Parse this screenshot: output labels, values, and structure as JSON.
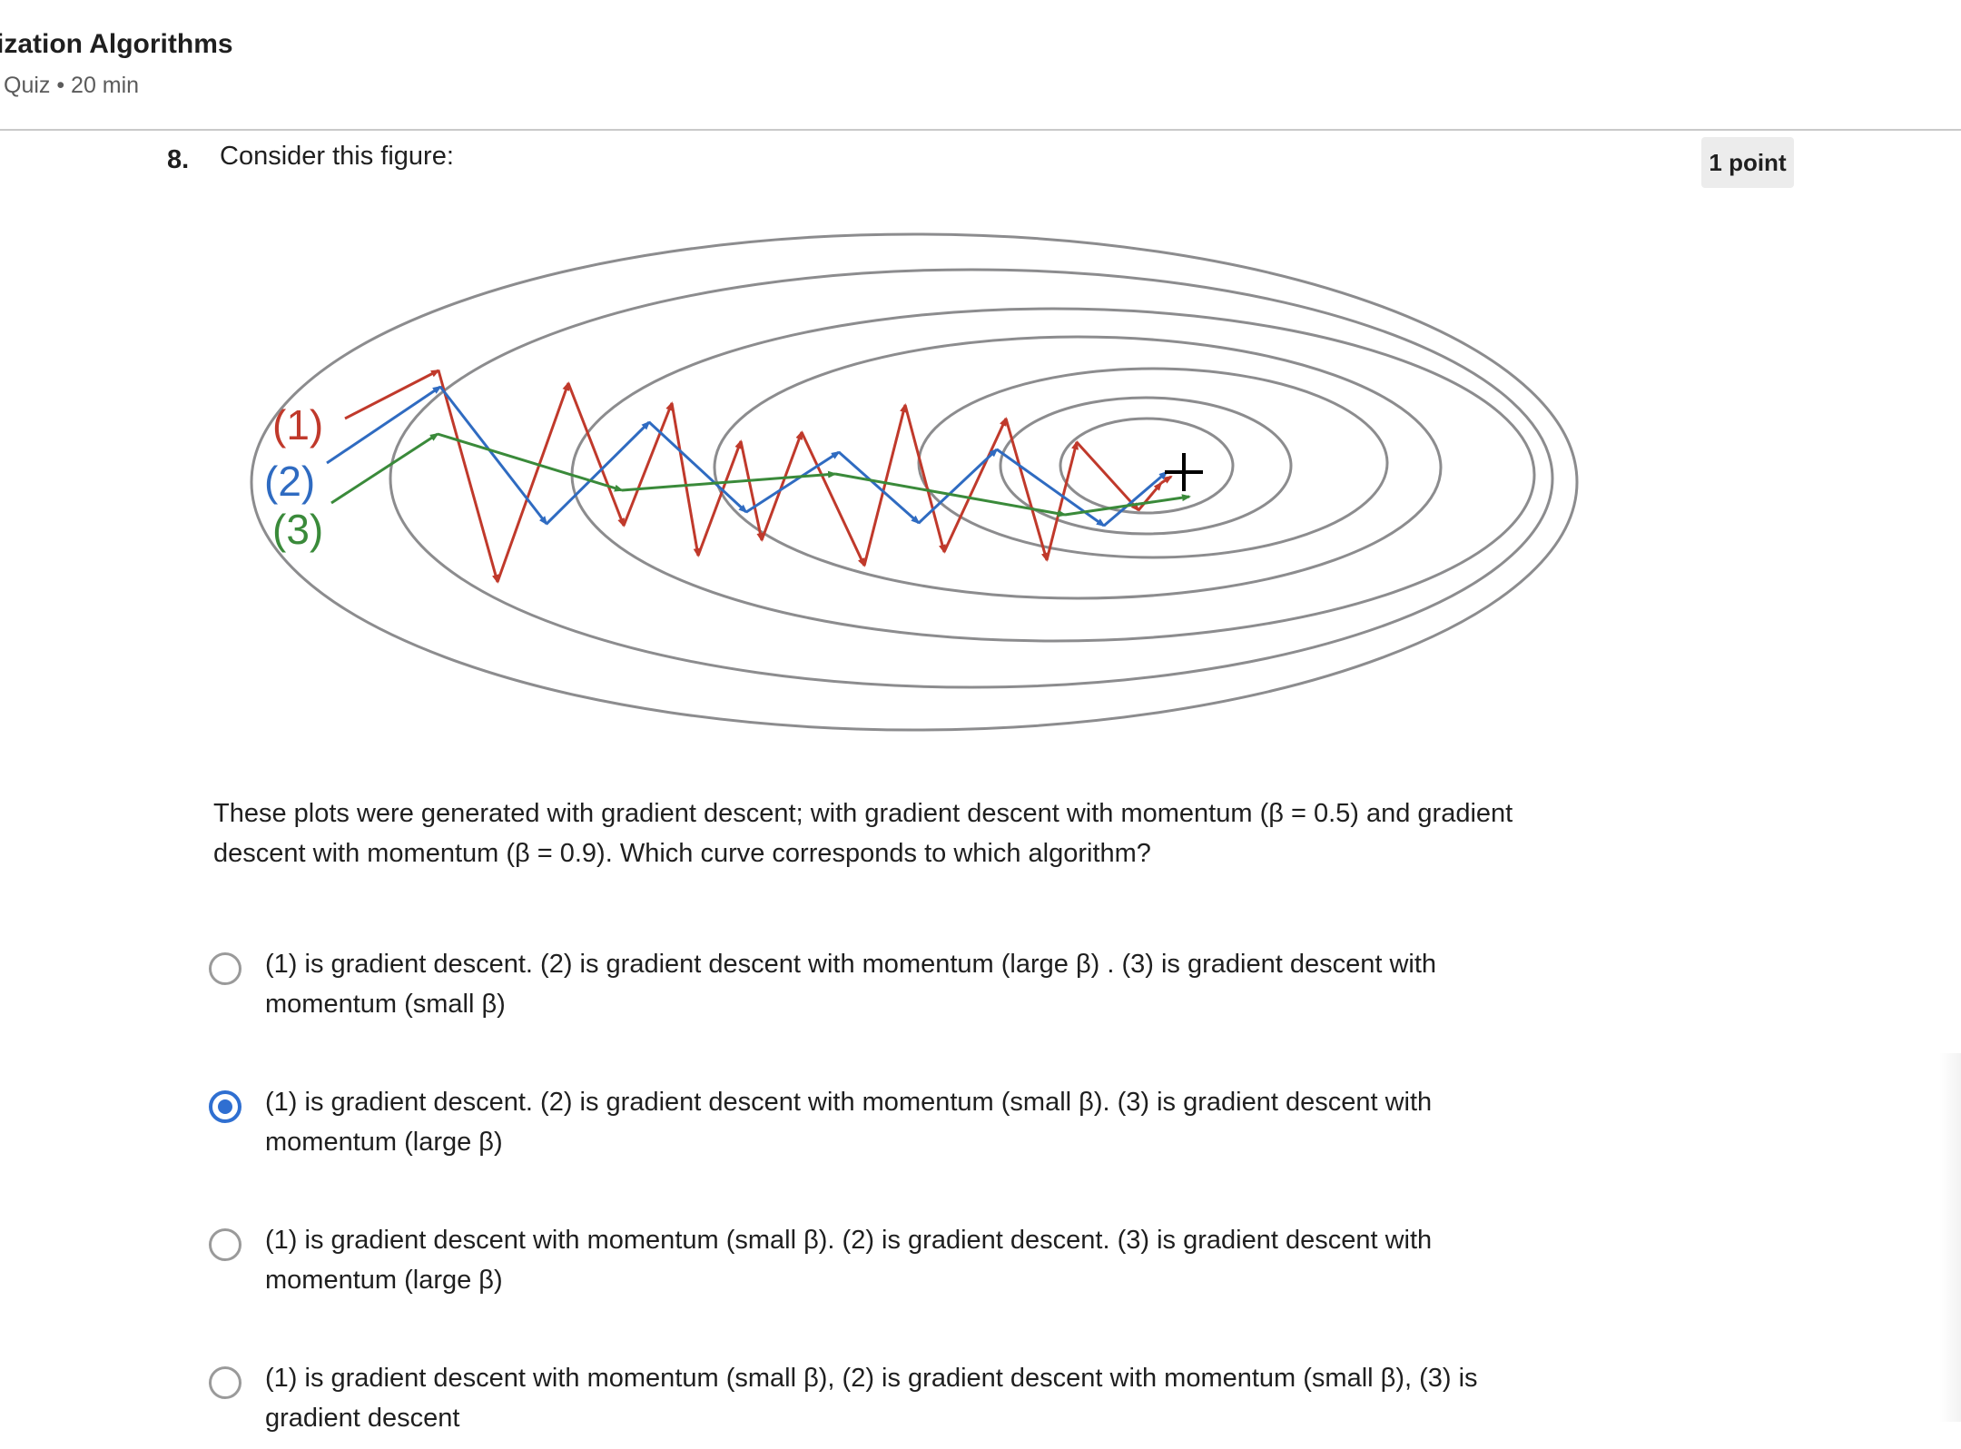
{
  "header": {
    "course_title": "ization Algorithms",
    "quiz_meta": "Quiz • 20 min"
  },
  "question": {
    "number": "8.",
    "prompt": "Consider this figure:",
    "points": "1 point",
    "text": "These plots were generated with gradient descent; with gradient descent with momentum (β = 0.5) and gradient descent with momentum (β = 0.9). Which curve corresponds to which algorithm?"
  },
  "figure": {
    "labels": [
      "(1)",
      "(2)",
      "(3)"
    ],
    "colors": {
      "curve1": "#c0392b",
      "curve2": "#2f6bc1",
      "curve3": "#3a8a3a",
      "contour": "#8c8c8e",
      "minimum": "#000000"
    },
    "minimum_icon": "plus-icon"
  },
  "options": [
    {
      "text": "(1) is gradient descent. (2) is gradient descent with momentum (large β) . (3) is gradient descent with momentum (small β)",
      "selected": false
    },
    {
      "text": "(1) is gradient descent. (2) is gradient descent with momentum (small β). (3) is gradient descent with momentum (large β)",
      "selected": true
    },
    {
      "text": "(1) is gradient descent with momentum (small β). (2) is gradient descent. (3) is gradient descent with momentum (large β)",
      "selected": false
    },
    {
      "text": "(1) is gradient descent with momentum (small β), (2) is gradient descent with momentum (small β), (3) is gradient descent",
      "selected": false
    }
  ]
}
